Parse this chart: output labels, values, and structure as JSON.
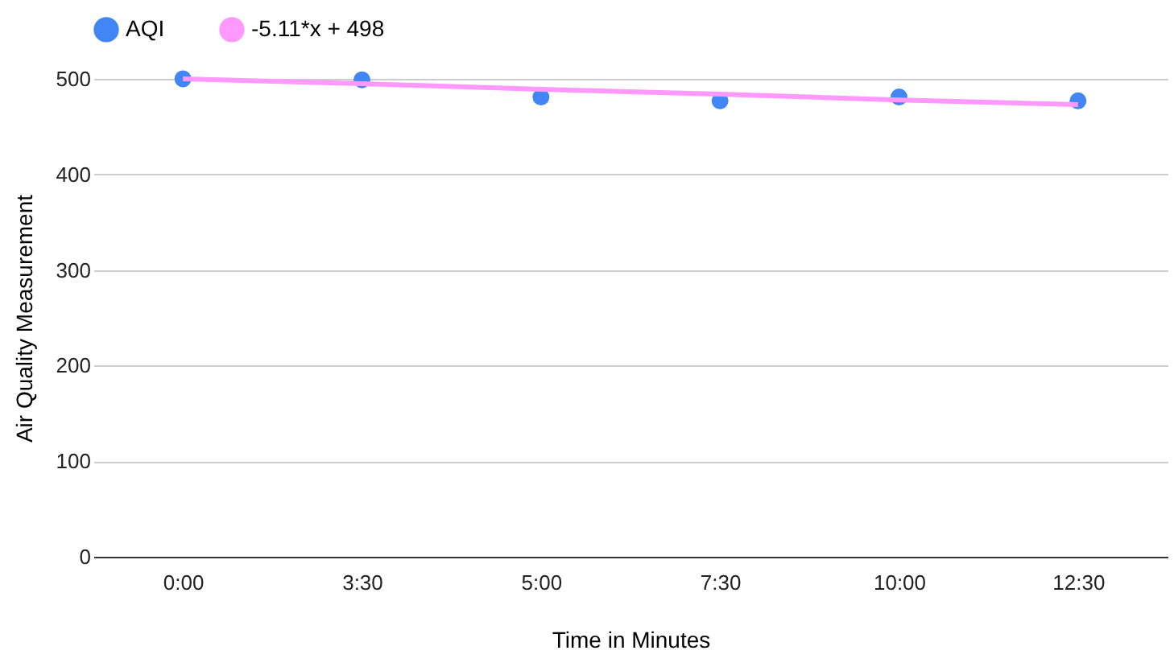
{
  "chart_data": {
    "type": "scatter",
    "xlabel": "Time in Minutes",
    "ylabel": "Air Quality Measurement",
    "categories": [
      "0:00",
      "3:30",
      "5:00",
      "7:30",
      "10:00",
      "12:30"
    ],
    "series": [
      {
        "name": "AQI",
        "color": "#4285f4",
        "values": [
          500,
          499,
          481,
          477,
          481,
          477
        ]
      },
      {
        "name": "-5.11*x + 498",
        "type": "line",
        "marker": "none",
        "color": "#ff99ff",
        "values": [
          500,
          495,
          489,
          484,
          478,
          473
        ]
      }
    ],
    "ylim": [
      0,
      500
    ],
    "yticks": [
      0,
      100,
      200,
      300,
      400,
      500
    ],
    "grid": "y",
    "legend": "top",
    "marker": "circle",
    "line_style": "solid"
  }
}
